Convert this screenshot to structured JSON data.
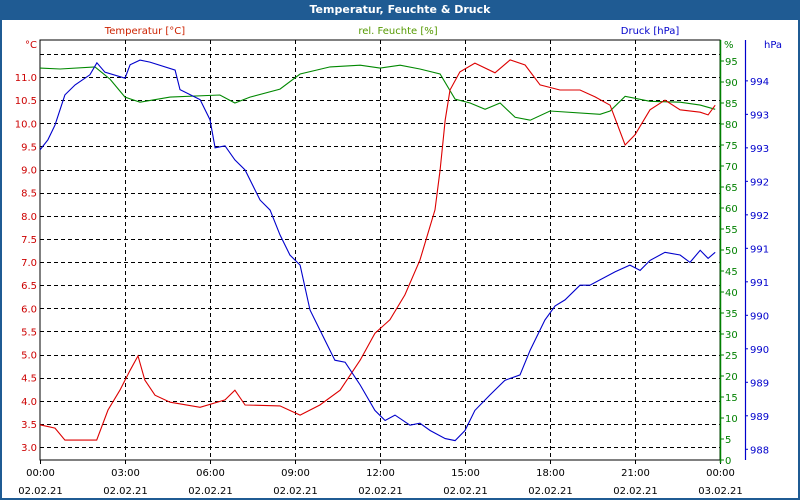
{
  "window": {
    "title": "Temperatur, Feuchte & Druck"
  },
  "chart_data": {
    "type": "line",
    "title": "Temperatur, Feuchte & Druck",
    "xlabel": "",
    "x_ticks": [
      {
        "hour": 0,
        "time": "00:00",
        "date": "02.02.21"
      },
      {
        "hour": 3,
        "time": "03:00",
        "date": "02.02.21"
      },
      {
        "hour": 6,
        "time": "06:00",
        "date": "02.02.21"
      },
      {
        "hour": 9,
        "time": "09:00",
        "date": "02.02.21"
      },
      {
        "hour": 12,
        "time": "12:00",
        "date": "02.02.21"
      },
      {
        "hour": 15,
        "time": "15:00",
        "date": "02.02.21"
      },
      {
        "hour": 18,
        "time": "18:00",
        "date": "02.02.21"
      },
      {
        "hour": 21,
        "time": "21:00",
        "date": "02.02.21"
      },
      {
        "hour": 24,
        "time": "00:00",
        "date": "03.02.21"
      }
    ],
    "xlim": [
      0,
      24
    ],
    "grid": true,
    "axes": {
      "temperature": {
        "unit_label": "°C",
        "ylim": [
          2.72,
          11.8
        ],
        "ticks": [
          "3.0",
          "3.5",
          "4.0",
          "4.5",
          "5.0",
          "5.5",
          "6.0",
          "6.5",
          "7.0",
          "7.5",
          "8.0",
          "8.5",
          "9.0",
          "9.5",
          "10.0",
          "10.5",
          "11.0"
        ],
        "tick_values": [
          3,
          3.5,
          4,
          4.5,
          5,
          5.5,
          6,
          6.5,
          7,
          7.5,
          8,
          8.5,
          9,
          9.5,
          10,
          10.5,
          11
        ],
        "color": "#cc0000"
      },
      "humidity": {
        "unit_label": "%",
        "ylim": [
          0,
          100
        ],
        "ticks": [
          "0",
          "5",
          "10",
          "15",
          "20",
          "25",
          "30",
          "35",
          "40",
          "45",
          "50",
          "55",
          "60",
          "65",
          "70",
          "75",
          "80",
          "85",
          "90",
          "95"
        ],
        "tick_values": [
          0,
          5,
          10,
          15,
          20,
          25,
          30,
          35,
          40,
          45,
          50,
          55,
          60,
          65,
          70,
          75,
          80,
          85,
          90,
          95
        ],
        "color": "#008000"
      },
      "pressure": {
        "unit_label": "hPa",
        "ylim": [
          987.84,
          994.11
        ],
        "ticks": [
          "988",
          "989",
          "989",
          "990",
          "990",
          "991",
          "991",
          "992",
          "992",
          "993",
          "993",
          "994"
        ],
        "tick_values": [
          988,
          988.5,
          989,
          989.5,
          990,
          990.5,
          991,
          991.5,
          992,
          992.5,
          993,
          993.5
        ],
        "color": "#0000cc"
      }
    },
    "series": [
      {
        "name": "Temperatur [°C]",
        "axis": "temperature",
        "color": "#dd0000",
        "x": [
          0,
          0.53,
          0.88,
          2.0,
          2.4,
          2.82,
          3.18,
          3.46,
          3.7,
          4.06,
          4.59,
          5.65,
          6.53,
          6.88,
          7.24,
          8.47,
          9.18,
          9.88,
          10.59,
          11.3,
          11.82,
          12.35,
          12.88,
          13.41,
          13.94,
          14.12,
          14.3,
          14.47,
          14.82,
          15.35,
          16.06,
          16.59,
          17.12,
          17.65,
          18.35,
          19.06,
          19.59,
          20.12,
          20.65,
          21.0,
          21.53,
          22.06,
          22.59,
          23.3,
          23.58,
          23.83
        ],
        "y": [
          3.48,
          3.41,
          3.15,
          3.15,
          3.8,
          4.23,
          4.66,
          4.97,
          4.45,
          4.12,
          3.97,
          3.86,
          4.02,
          4.23,
          3.91,
          3.89,
          3.69,
          3.91,
          4.23,
          4.88,
          5.46,
          5.75,
          6.29,
          7.04,
          8.13,
          8.99,
          10.07,
          10.72,
          11.11,
          11.3,
          11.09,
          11.37,
          11.26,
          10.83,
          10.72,
          10.72,
          10.57,
          10.39,
          9.53,
          9.75,
          10.29,
          10.5,
          10.29,
          10.24,
          10.18,
          10.39
        ]
      },
      {
        "name": "rel. Feuchte [%]",
        "axis": "humidity",
        "color": "#008800",
        "x": [
          0,
          0.71,
          1.94,
          2.47,
          3.0,
          3.53,
          4.59,
          6.35,
          6.88,
          7.41,
          8.47,
          9.18,
          10.24,
          11.3,
          12.0,
          12.71,
          13.41,
          14.12,
          14.65,
          15.18,
          15.71,
          16.24,
          16.77,
          17.3,
          18.0,
          19.77,
          20.12,
          20.65,
          21.53,
          22.59,
          23.3,
          23.83
        ],
        "y": [
          93.3,
          93.1,
          93.6,
          90.7,
          86.4,
          85.2,
          86.4,
          86.9,
          85.0,
          86.4,
          88.3,
          91.9,
          93.6,
          94.0,
          93.3,
          94.0,
          93.1,
          91.9,
          85.9,
          85.0,
          83.5,
          85.0,
          81.6,
          80.9,
          83.1,
          82.3,
          83.1,
          86.6,
          85.4,
          85.2,
          84.5,
          83.5
        ]
      },
      {
        "name": "Druck [hPa]",
        "axis": "pressure",
        "color": "#0000cc",
        "x": [
          0,
          0.28,
          0.53,
          0.88,
          1.24,
          1.76,
          2.01,
          2.29,
          3.0,
          3.18,
          3.53,
          3.88,
          4.77,
          4.94,
          5.65,
          6.0,
          6.18,
          6.53,
          6.88,
          7.24,
          7.77,
          8.12,
          8.47,
          8.82,
          9.18,
          9.53,
          9.88,
          10.41,
          10.77,
          11.3,
          11.82,
          12.18,
          12.53,
          13.06,
          13.41,
          13.77,
          14.3,
          14.65,
          15.0,
          15.35,
          15.88,
          16.41,
          16.94,
          17.3,
          17.82,
          18.18,
          18.53,
          19.06,
          19.41,
          20.3,
          20.82,
          21.18,
          21.53,
          22.06,
          22.59,
          22.94,
          23.3,
          23.58,
          23.83
        ],
        "y": [
          992.47,
          992.62,
          992.84,
          993.29,
          993.44,
          993.59,
          993.77,
          993.63,
          993.54,
          993.74,
          993.81,
          993.78,
          993.66,
          993.37,
          993.22,
          992.92,
          992.5,
          992.53,
          992.32,
          992.17,
          991.72,
          991.57,
          991.2,
          990.9,
          990.75,
          990.08,
          989.78,
          989.33,
          989.3,
          988.96,
          988.58,
          988.43,
          988.51,
          988.36,
          988.39,
          988.28,
          988.16,
          988.13,
          988.28,
          988.58,
          988.81,
          989.03,
          989.11,
          989.48,
          989.93,
          990.14,
          990.23,
          990.45,
          990.45,
          990.65,
          990.75,
          990.67,
          990.82,
          990.94,
          990.9,
          990.79,
          990.97,
          990.85,
          990.94
        ]
      }
    ]
  }
}
